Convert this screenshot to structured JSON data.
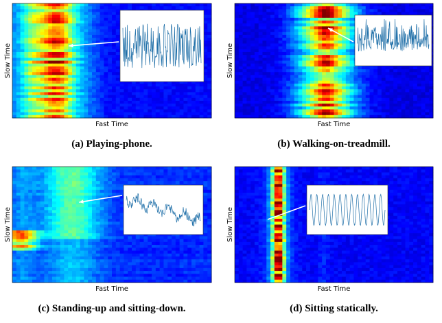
{
  "panels": [
    {
      "x_label": "Fast Time",
      "y_label": "Slow Time",
      "caption": "(a) Playing-phone."
    },
    {
      "x_label": "Fast Time",
      "y_label": "Slow Time",
      "caption": "(b) Walking-on-treadmill."
    },
    {
      "x_label": "Fast Time",
      "y_label": "Slow Time",
      "caption": "(c) Standing-up and sitting-down."
    },
    {
      "x_label": "Fast Time",
      "y_label": "Slow Time",
      "caption": "(d) Sitting statically."
    }
  ]
}
